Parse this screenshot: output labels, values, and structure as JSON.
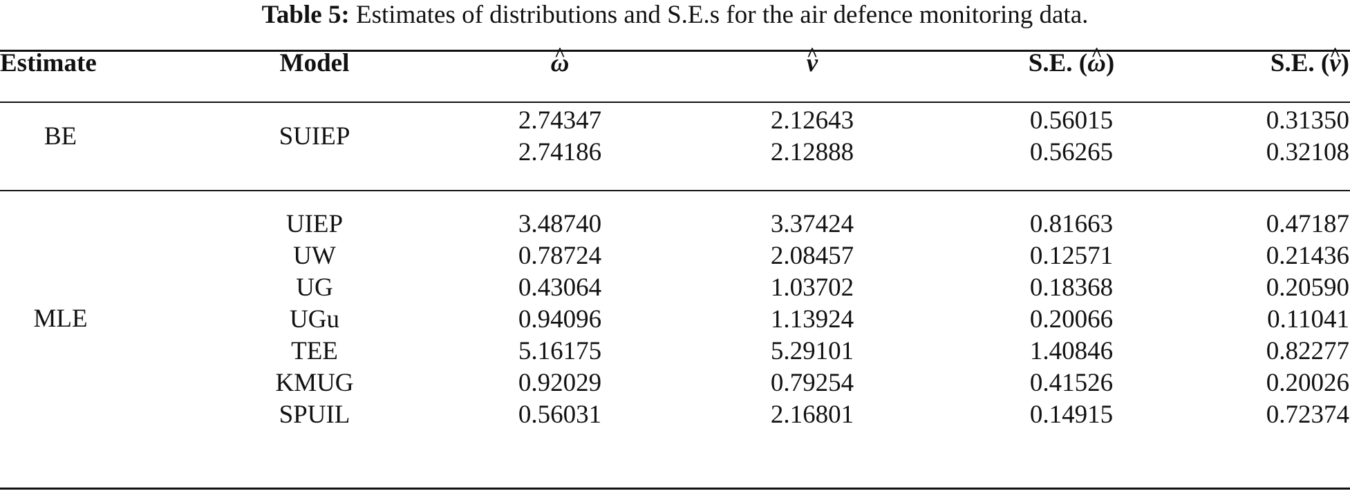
{
  "caption": {
    "label": "Table 5:",
    "text": "Estimates of distributions and S.E.s for the air defence monitoring data."
  },
  "header": {
    "estimate": "Estimate",
    "model": "Model",
    "omega_hat": "ω",
    "nu_hat": "ν",
    "se_prefix": "S.E. (",
    "se_suffix": ")"
  },
  "groups": [
    {
      "estimate": "BE",
      "model": "SUIEP",
      "rows": [
        {
          "w": "2.74347",
          "v": "2.12643",
          "se_w": "0.56015",
          "se_v": "0.31350"
        },
        {
          "w": "2.74186",
          "v": "2.12888",
          "se_w": "0.56265",
          "se_v": "0.32108"
        }
      ]
    },
    {
      "estimate": "MLE",
      "rows": [
        {
          "model": "UIEP",
          "w": "3.48740",
          "v": "3.37424",
          "se_w": "0.81663",
          "se_v": "0.47187"
        },
        {
          "model": "UW",
          "w": "0.78724",
          "v": "2.08457",
          "se_w": "0.12571",
          "se_v": "0.21436"
        },
        {
          "model": "UG",
          "w": "0.43064",
          "v": "1.03702",
          "se_w": "0.18368",
          "se_v": "0.20590"
        },
        {
          "model": "UGu",
          "w": "0.94096",
          "v": "1.13924",
          "se_w": "0.20066",
          "se_v": "0.11041"
        },
        {
          "model": "TEE",
          "w": "5.16175",
          "v": "5.29101",
          "se_w": "1.40846",
          "se_v": "0.82277"
        },
        {
          "model": "KMUG",
          "w": "0.92029",
          "v": "0.79254",
          "se_w": "0.41526",
          "se_v": "0.20026"
        },
        {
          "model": "SPUIL",
          "w": "0.56031",
          "v": "2.16801",
          "se_w": "0.14915",
          "se_v": "0.72374"
        }
      ]
    }
  ]
}
